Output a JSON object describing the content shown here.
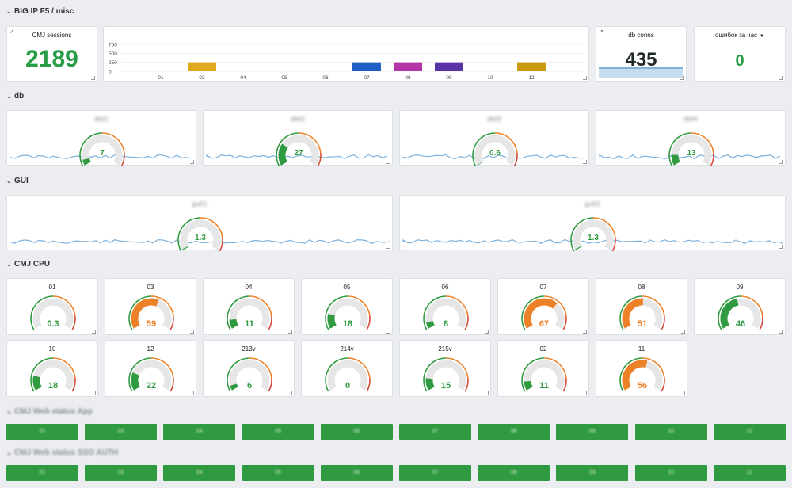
{
  "rows": {
    "bigip": "BIG IP F5 / misc",
    "db": "db",
    "gui": "GUI",
    "cpu": "CMJ CPU",
    "web_app": "CMJ Web status App",
    "web_sso": "CMJ Web status SSO AUTH"
  },
  "cmj_sessions": {
    "title": "CMJ sessions",
    "value": "2189"
  },
  "db_conns": {
    "title": "db conns",
    "value": "435"
  },
  "errors": {
    "title": "ошибок за час",
    "value": "0"
  },
  "bar_panel": {
    "chart_data": {
      "type": "bar",
      "categories": [
        "01",
        "03",
        "04",
        "05",
        "06",
        "07",
        "08",
        "09",
        "10",
        "12"
      ],
      "values": [
        0,
        250,
        0,
        0,
        0,
        250,
        250,
        250,
        0,
        250
      ],
      "colors": [
        "#e0a81c",
        "#e0a81c",
        "#e0a81c",
        "#e0a81c",
        "#e0a81c",
        "#1f60c4",
        "#b235a8",
        "#5a33a6",
        "#e0a81c",
        "#cc9a0e"
      ],
      "yticks": [
        "750",
        "500",
        "250",
        "0"
      ],
      "ylim": [
        0,
        750
      ]
    }
  },
  "db_gauges": [
    {
      "title": "db01",
      "value": "7",
      "pct": 0.07
    },
    {
      "title": "db02",
      "value": "27",
      "pct": 0.27
    },
    {
      "title": "db03",
      "value": "0.6",
      "pct": 0.006
    },
    {
      "title": "db04",
      "value": "13",
      "pct": 0.13
    }
  ],
  "gui_gauges": [
    {
      "title": "gui01",
      "value": "1.3",
      "pct": 0.013
    },
    {
      "title": "gui02",
      "value": "1.3",
      "pct": 0.013
    }
  ],
  "cpu_row1": [
    {
      "title": "01",
      "value": "0.3",
      "pct": 0.003
    },
    {
      "title": "03",
      "value": "59",
      "pct": 0.59
    },
    {
      "title": "04",
      "value": "11",
      "pct": 0.11
    },
    {
      "title": "05",
      "value": "18",
      "pct": 0.18
    },
    {
      "title": "06",
      "value": "8",
      "pct": 0.08
    },
    {
      "title": "07",
      "value": "67",
      "pct": 0.67
    },
    {
      "title": "08",
      "value": "51",
      "pct": 0.51
    },
    {
      "title": "09",
      "value": "46",
      "pct": 0.46
    }
  ],
  "cpu_row2": [
    {
      "title": "10",
      "value": "18",
      "pct": 0.18
    },
    {
      "title": "12",
      "value": "22",
      "pct": 0.22
    },
    {
      "title": "213v",
      "value": "6",
      "pct": 0.06
    },
    {
      "title": "214v",
      "value": "0",
      "pct": 0.0
    },
    {
      "title": "215v",
      "value": "15",
      "pct": 0.15
    },
    {
      "title": "02",
      "value": "11",
      "pct": 0.11
    },
    {
      "title": "11",
      "value": "56",
      "pct": 0.56
    }
  ],
  "web_app_cells": [
    "01",
    "03",
    "04",
    "05",
    "06",
    "07",
    "08",
    "09",
    "10",
    "12"
  ],
  "web_sso_cells": [
    "01",
    "03",
    "04",
    "05",
    "06",
    "07",
    "08",
    "09",
    "10",
    "12"
  ],
  "colors": {
    "green": "#2f9a3f",
    "orange": "#ed8128",
    "red": "#d44a3a",
    "gauge_bg": "#e6e6e6",
    "spark": "#7eb2dd"
  }
}
